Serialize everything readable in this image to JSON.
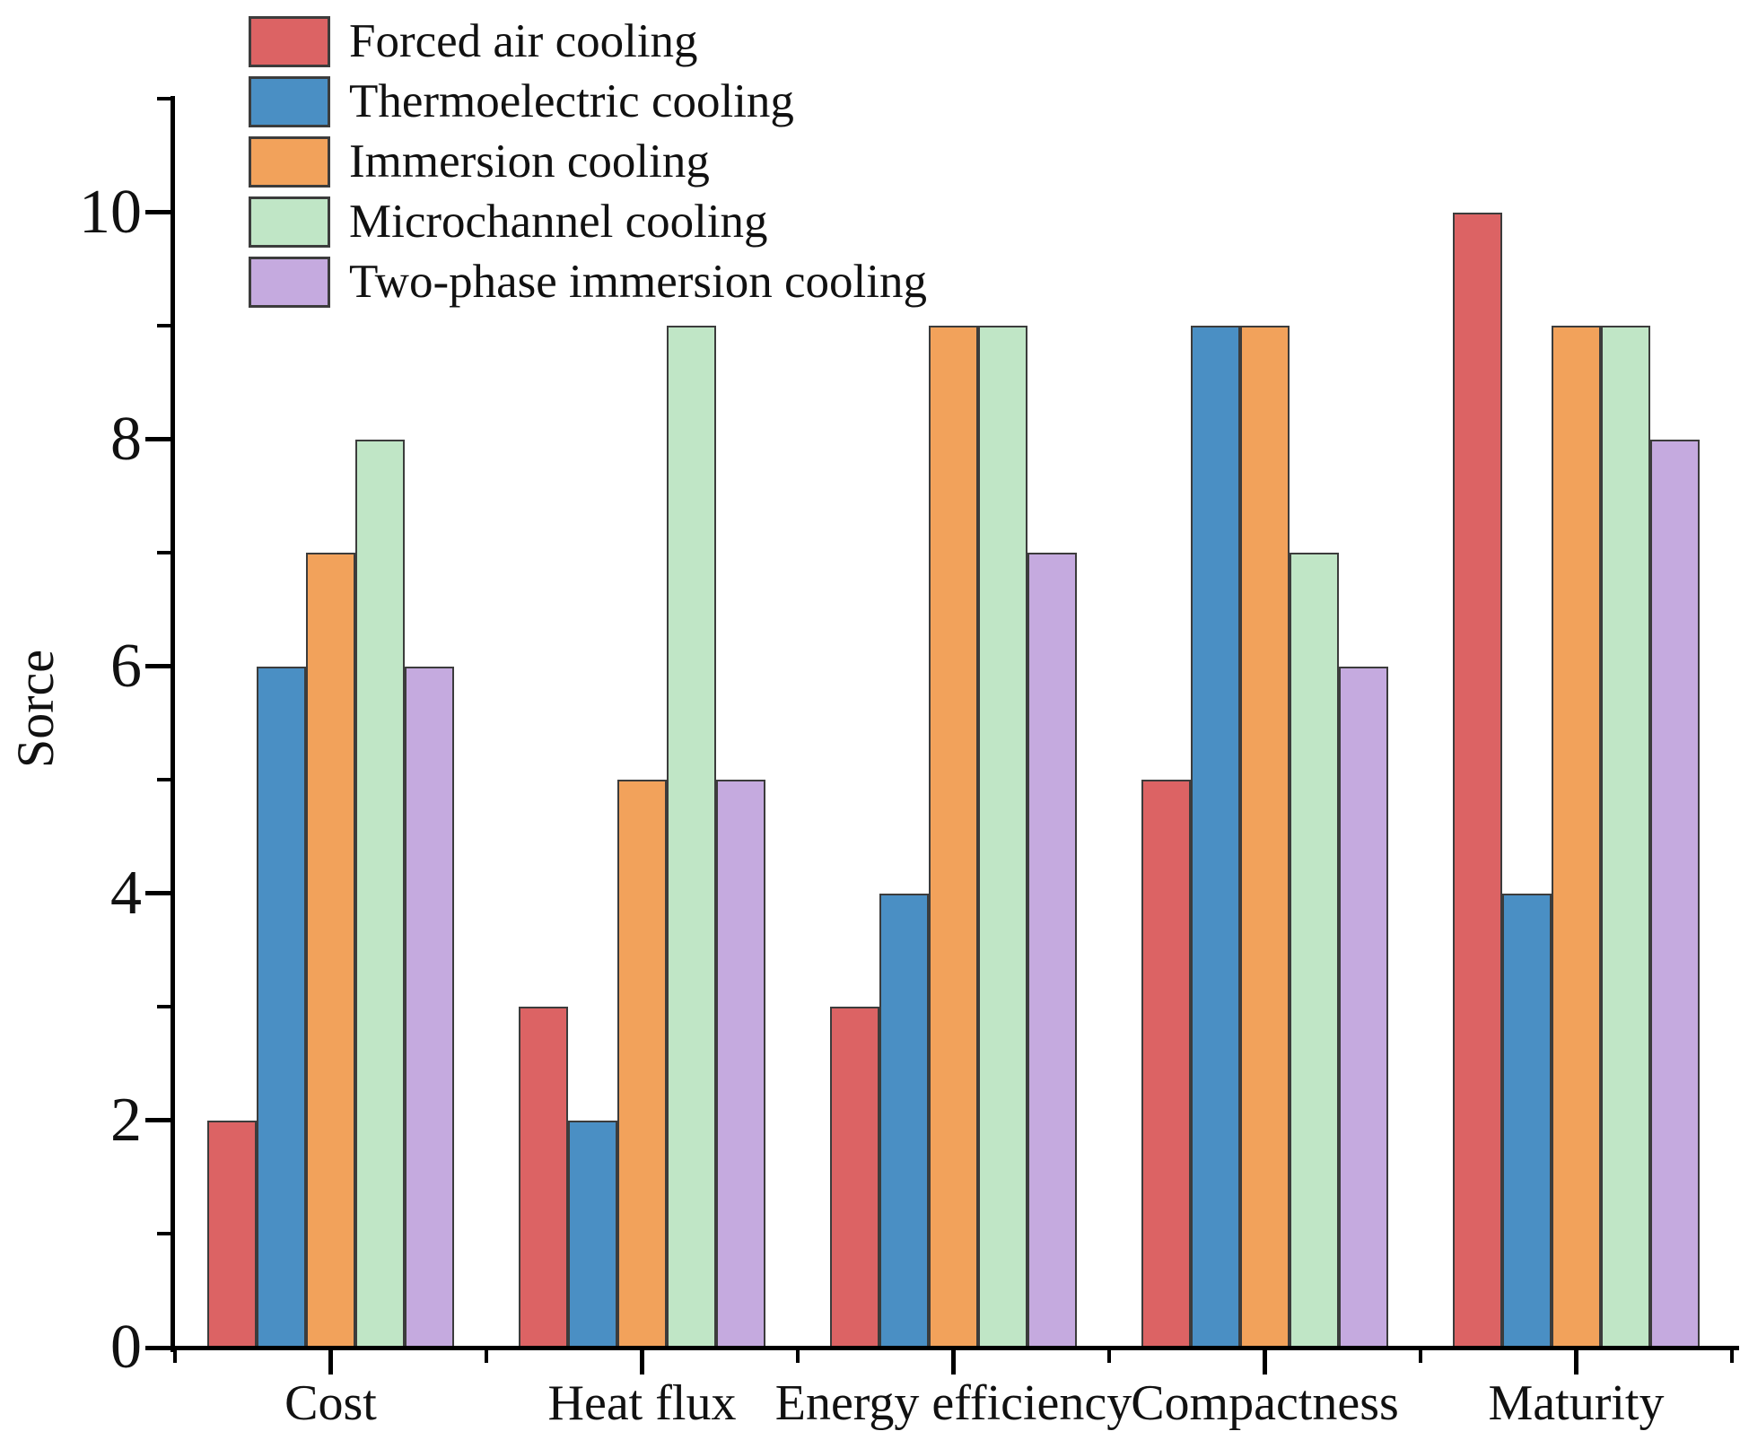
{
  "chart_data": {
    "type": "bar",
    "title": "",
    "xlabel": "",
    "ylabel": "Sorce",
    "ylim": [
      0,
      11
    ],
    "yticks_major": [
      0,
      2,
      4,
      6,
      8,
      10
    ],
    "yticks_minor": [
      1,
      3,
      5,
      7,
      9,
      11
    ],
    "grid": false,
    "legend_position": "top-left",
    "background_color": "#ffffff",
    "axis_color": "#000000",
    "text_color": "#111111",
    "bar_border_color": "#3c3c3c",
    "categories": [
      "Cost",
      "Heat flux",
      "Energy efficiency",
      "Compactness",
      "Maturity"
    ],
    "series": [
      {
        "name": "Forced air cooling",
        "color": "#dc6364",
        "values": [
          2,
          3,
          3,
          5,
          10
        ]
      },
      {
        "name": "Thermoelectric cooling",
        "color": "#4a8fc4",
        "values": [
          6,
          2,
          4,
          9,
          4
        ]
      },
      {
        "name": "Immersion cooling",
        "color": "#f2a25b",
        "values": [
          7,
          5,
          9,
          9,
          9
        ]
      },
      {
        "name": "Microchannel cooling",
        "color": "#c0e6c6",
        "values": [
          8,
          9,
          9,
          7,
          9
        ]
      },
      {
        "name": "Two-phase immersion cooling",
        "color": "#c5aadf",
        "values": [
          6,
          5,
          7,
          6,
          8
        ]
      }
    ]
  }
}
